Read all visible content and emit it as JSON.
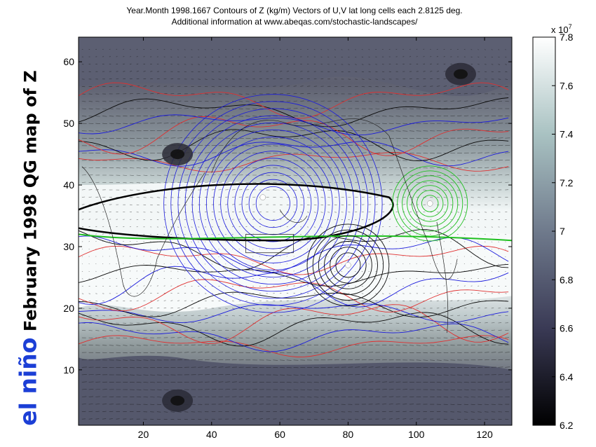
{
  "title_line1": "Year.Month  1998.1667  Contours of Z (kg/m)  Vectors of U,V  lat long cells each 2.8125 deg.",
  "title_line2": "Additional information at www.abeqas.com/stochastic-landscapes/",
  "side_label_blue": "el niño",
  "side_label_black": " February 1998 QG map of Z",
  "chart_data": {
    "type": "heatmap",
    "title": "Year.Month  1998.1667  Contours of Z (kg/m)  Vectors of U,V  lat long cells each 2.8125 deg.",
    "xlim": [
      1,
      128
    ],
    "ylim": [
      1,
      64
    ],
    "x_ticks": [
      20,
      40,
      60,
      80,
      100,
      120
    ],
    "y_ticks": [
      10,
      20,
      30,
      40,
      50,
      60
    ],
    "colorbar": {
      "ticks": [
        6.2,
        6.4,
        6.6,
        6.8,
        7.0,
        7.2,
        7.4,
        7.6,
        7.8
      ],
      "tick_labels": [
        "6.2",
        "6.4",
        "6.6",
        "6.8",
        "7",
        "7.2",
        "7.4",
        "7.6",
        "7.8"
      ],
      "exponent_label": "x 10",
      "exponent_power": "7",
      "range": [
        6.2,
        7.8
      ],
      "colormap": "bone"
    },
    "contour_colors": [
      "#1a1adc",
      "#0a0a0a",
      "#e03030",
      "#20c020",
      "#20c8d0"
    ],
    "features": [
      {
        "kind": "low",
        "x": 30,
        "y": 45,
        "value": 6.3
      },
      {
        "kind": "low",
        "x": 113,
        "y": 58,
        "value": 6.3
      },
      {
        "kind": "low",
        "x": 30,
        "y": 5,
        "value": 6.4
      },
      {
        "kind": "high",
        "x": 55,
        "y": 38,
        "value": 7.8
      },
      {
        "kind": "high",
        "x": 80,
        "y": 27,
        "value": 7.8
      },
      {
        "kind": "high",
        "x": 104,
        "y": 37,
        "value": 7.8
      }
    ],
    "grid": false
  }
}
